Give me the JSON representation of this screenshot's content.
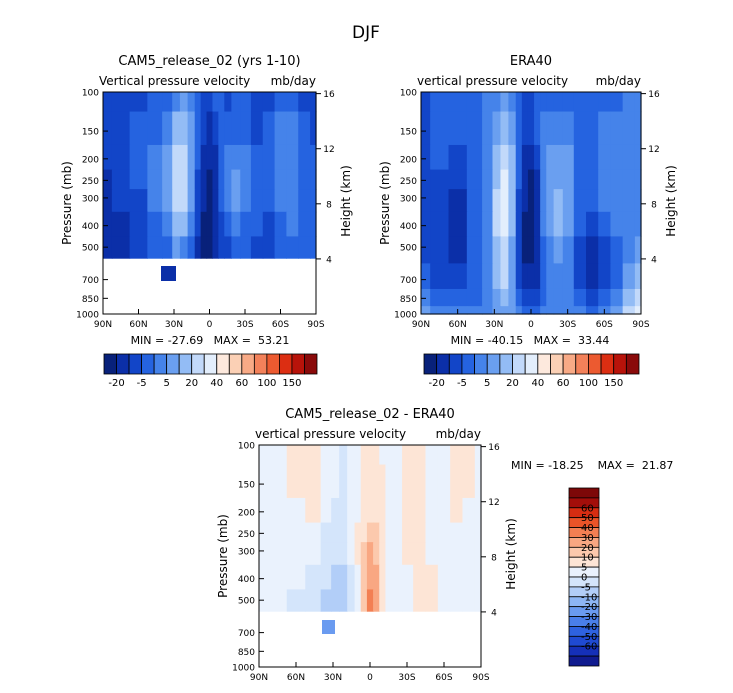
{
  "figure_title": "DJF",
  "colors": {
    "full": [
      "#08217a",
      "#0b2fa8",
      "#1245c8",
      "#2563e0",
      "#4583ea",
      "#6a9ff0",
      "#93bcf5",
      "#c2d9fa",
      "#e3eefc",
      "#fde9dd",
      "#fbd0b5",
      "#f8aa86",
      "#f3815a",
      "#ec5a30",
      "#dc2e12",
      "#b8130a",
      "#8a0a0a"
    ],
    "diff": [
      "#101b8f",
      "#1530b8",
      "#1f4ad2",
      "#2e62e0",
      "#4a7fea",
      "#6a9bf0",
      "#8db6f5",
      "#b2cef8",
      "#d4e5fb",
      "#eaf2fd",
      "#fde5d6",
      "#fcc9ad",
      "#f9a782",
      "#f37f53",
      "#ea5428",
      "#d62d12",
      "#a30e0a",
      "#7d0808"
    ]
  },
  "chart_data": [
    {
      "type": "heatmap",
      "title": "CAM5_release_02 (yrs 1-10)",
      "subtitle_left": "Vertical pressure velocity",
      "units": "mb/day",
      "xlabel": "",
      "ylabel": "Pressure (mb)",
      "y2label": "Height (km)",
      "x_ticks": [
        "90N",
        "60N",
        "30N",
        "0",
        "30S",
        "60S",
        "90S"
      ],
      "x_range": [
        90,
        -90
      ],
      "y_ticks": [
        100,
        150,
        200,
        250,
        300,
        400,
        500,
        700,
        850,
        1000
      ],
      "y_range": [
        100,
        1000
      ],
      "y2_ticks": [
        16,
        12,
        8,
        4
      ],
      "stats_text": "MIN = -27.69   MAX =  53.21",
      "colorbar_labels": [
        "-20",
        "-5",
        "5",
        "20",
        "40",
        "60",
        "100",
        "150"
      ],
      "lat_columns": [
        90,
        75,
        60,
        45,
        35,
        28,
        22,
        15,
        10,
        5,
        0,
        -5,
        -10,
        -15,
        -22,
        -30,
        -40,
        -50,
        -60,
        -70,
        -80,
        -90
      ],
      "levels": [
        100,
        150,
        200,
        250,
        300,
        400,
        500
      ],
      "class_grid": [
        [
          2,
          2,
          2,
          3,
          3,
          4,
          5,
          4,
          3,
          2,
          2,
          3,
          3,
          2,
          3,
          3,
          2,
          2,
          3,
          3,
          2,
          2
        ],
        [
          2,
          2,
          3,
          3,
          4,
          6,
          6,
          5,
          3,
          2,
          1,
          2,
          3,
          3,
          3,
          3,
          2,
          3,
          4,
          4,
          3,
          2
        ],
        [
          2,
          2,
          3,
          4,
          5,
          7,
          7,
          5,
          3,
          1,
          1,
          1,
          3,
          4,
          4,
          4,
          3,
          3,
          4,
          4,
          3,
          3
        ],
        [
          1,
          2,
          3,
          4,
          5,
          7,
          7,
          5,
          2,
          1,
          0,
          1,
          3,
          4,
          5,
          4,
          3,
          3,
          4,
          4,
          3,
          3
        ],
        [
          1,
          2,
          2,
          4,
          5,
          7,
          7,
          5,
          2,
          1,
          0,
          1,
          3,
          4,
          5,
          4,
          3,
          3,
          4,
          4,
          3,
          3
        ],
        [
          1,
          1,
          2,
          3,
          4,
          6,
          6,
          4,
          2,
          0,
          0,
          1,
          2,
          3,
          4,
          3,
          3,
          2,
          3,
          4,
          3,
          3
        ],
        [
          1,
          1,
          2,
          3,
          3,
          5,
          4,
          3,
          1,
          0,
          0,
          1,
          2,
          2,
          3,
          3,
          2,
          2,
          3,
          3,
          3,
          3
        ]
      ]
    },
    {
      "type": "heatmap",
      "title": "ERA40",
      "subtitle_left": "vertical pressure velocity",
      "units": "mb/day",
      "xlabel": "",
      "ylabel": "Pressure (mb)",
      "y2label": "Height (km)",
      "x_ticks": [
        "90N",
        "60N",
        "30N",
        "0",
        "30S",
        "60S",
        "90S"
      ],
      "x_range": [
        90,
        -90
      ],
      "y_ticks": [
        100,
        150,
        200,
        250,
        300,
        400,
        500,
        700,
        850,
        1000
      ],
      "y_range": [
        100,
        1000
      ],
      "y2_ticks": [
        16,
        12,
        8,
        4
      ],
      "stats_text": "MIN = -40.15   MAX =  33.44",
      "colorbar_labels": [
        "-20",
        "-5",
        "5",
        "20",
        "40",
        "60",
        "100",
        "150"
      ],
      "lat_columns": [
        90,
        75,
        60,
        45,
        35,
        28,
        22,
        15,
        10,
        5,
        0,
        -5,
        -10,
        -15,
        -22,
        -30,
        -40,
        -50,
        -60,
        -70,
        -80,
        -90
      ],
      "levels": [
        100,
        150,
        200,
        250,
        300,
        400,
        500,
        700,
        850,
        1000
      ],
      "class_grid": [
        [
          2,
          3,
          3,
          3,
          4,
          4,
          5,
          4,
          3,
          2,
          2,
          3,
          3,
          3,
          3,
          3,
          3,
          3,
          3,
          3,
          4,
          4
        ],
        [
          2,
          3,
          3,
          3,
          4,
          5,
          6,
          5,
          3,
          2,
          2,
          3,
          4,
          4,
          4,
          4,
          3,
          3,
          4,
          4,
          4,
          4
        ],
        [
          2,
          3,
          2,
          3,
          4,
          6,
          7,
          6,
          3,
          1,
          1,
          2,
          4,
          5,
          5,
          5,
          3,
          3,
          4,
          4,
          4,
          4
        ],
        [
          2,
          2,
          2,
          3,
          4,
          6,
          8,
          6,
          3,
          1,
          0,
          1,
          4,
          5,
          5,
          5,
          3,
          3,
          4,
          4,
          4,
          4
        ],
        [
          2,
          2,
          1,
          3,
          4,
          7,
          8,
          6,
          2,
          1,
          0,
          1,
          4,
          5,
          6,
          5,
          3,
          3,
          4,
          4,
          4,
          4
        ],
        [
          2,
          2,
          1,
          3,
          4,
          7,
          8,
          6,
          2,
          0,
          0,
          1,
          4,
          5,
          6,
          5,
          3,
          2,
          3,
          4,
          4,
          4
        ],
        [
          2,
          2,
          1,
          3,
          4,
          6,
          7,
          5,
          2,
          0,
          0,
          1,
          3,
          4,
          5,
          4,
          2,
          1,
          2,
          3,
          4,
          5
        ],
        [
          3,
          2,
          2,
          3,
          4,
          6,
          7,
          5,
          2,
          1,
          1,
          1,
          3,
          4,
          4,
          4,
          2,
          1,
          2,
          3,
          5,
          6
        ],
        [
          4,
          3,
          3,
          3,
          4,
          5,
          6,
          5,
          3,
          2,
          2,
          2,
          3,
          4,
          4,
          4,
          3,
          2,
          3,
          4,
          6,
          7
        ],
        [
          5,
          4,
          4,
          4,
          4,
          5,
          5,
          5,
          4,
          3,
          3,
          3,
          4,
          4,
          4,
          4,
          4,
          3,
          4,
          5,
          7,
          8
        ]
      ]
    },
    {
      "type": "heatmap",
      "title": "CAM5_release_02 - ERA40",
      "subtitle_left": "vertical pressure velocity",
      "units": "mb/day",
      "xlabel": "",
      "ylabel": "Pressure (mb)",
      "y2label": "Height (km)",
      "x_ticks": [
        "90N",
        "60N",
        "30N",
        "0",
        "30S",
        "60S",
        "90S"
      ],
      "x_range": [
        90,
        -90
      ],
      "y_ticks": [
        100,
        150,
        200,
        250,
        300,
        400,
        500,
        700,
        850,
        1000
      ],
      "y_range": [
        100,
        1000
      ],
      "y2_ticks": [
        16,
        12,
        8,
        4
      ],
      "stats_text": "MIN = -18.25    MAX =  21.87",
      "colorbar_labels": [
        "60",
        "50",
        "40",
        "30",
        "20",
        "10",
        "5",
        "0",
        "-5",
        "-10",
        "-20",
        "-30",
        "-40",
        "-50",
        "-60"
      ],
      "lat_columns": [
        90,
        75,
        60,
        45,
        35,
        28,
        22,
        15,
        10,
        5,
        0,
        -5,
        -10,
        -15,
        -22,
        -30,
        -40,
        -50,
        -60,
        -70,
        -80,
        -90
      ],
      "levels": [
        100,
        150,
        200,
        250,
        300,
        400,
        500
      ],
      "class_grid": [
        [
          9,
          9,
          10,
          10,
          9,
          9,
          8,
          9,
          9,
          10,
          10,
          10,
          9,
          9,
          9,
          10,
          10,
          9,
          9,
          10,
          10,
          9
        ],
        [
          9,
          9,
          10,
          10,
          9,
          9,
          8,
          9,
          9,
          10,
          10,
          10,
          10,
          9,
          9,
          10,
          10,
          9,
          9,
          10,
          10,
          9
        ],
        [
          9,
          9,
          9,
          10,
          9,
          8,
          8,
          9,
          9,
          10,
          10,
          10,
          10,
          9,
          9,
          10,
          10,
          9,
          9,
          10,
          9,
          9
        ],
        [
          9,
          9,
          9,
          9,
          8,
          8,
          8,
          9,
          10,
          10,
          11,
          11,
          10,
          9,
          9,
          10,
          10,
          9,
          9,
          9,
          9,
          9
        ],
        [
          9,
          9,
          9,
          9,
          8,
          8,
          8,
          9,
          10,
          11,
          12,
          11,
          10,
          9,
          9,
          10,
          10,
          9,
          9,
          9,
          9,
          9
        ],
        [
          9,
          9,
          9,
          8,
          8,
          7,
          7,
          8,
          9,
          11,
          12,
          12,
          10,
          9,
          9,
          9,
          10,
          10,
          9,
          9,
          9,
          9
        ],
        [
          9,
          9,
          8,
          8,
          7,
          7,
          7,
          8,
          9,
          11,
          13,
          12,
          10,
          9,
          9,
          9,
          10,
          10,
          9,
          9,
          9,
          9
        ]
      ]
    }
  ]
}
